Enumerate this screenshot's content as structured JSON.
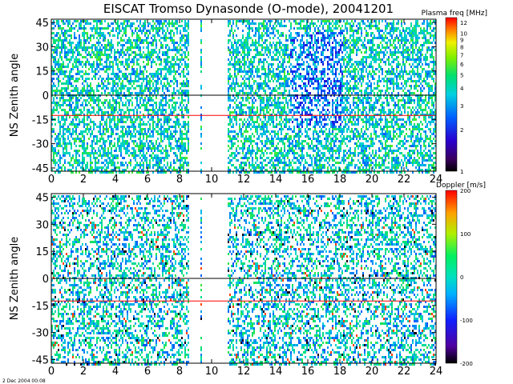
{
  "title": "EISCAT Tromso Dynasonde (O-mode),  20041201",
  "footer": "2 Dec 2004 00:08",
  "chart_data": [
    {
      "type": "heatmap",
      "ylabel": "NS Zenith angle",
      "colorbar_label": "Plasma freq [MHz]",
      "x_range": [
        0,
        24
      ],
      "y_range": [
        -47,
        47
      ],
      "x_ticks": [
        0,
        2,
        4,
        6,
        8,
        10,
        12,
        14,
        16,
        18,
        20,
        22,
        24
      ],
      "y_ticks": [
        45,
        30,
        15,
        0,
        -15,
        -30,
        -45
      ],
      "colorbar_scale": "log",
      "colorbar_range": [
        1,
        13
      ],
      "colorbar_ticks": [
        12,
        10,
        9,
        8,
        7,
        6,
        5,
        4,
        3,
        2,
        1
      ],
      "reference_lines": [
        {
          "y": 0,
          "color": "#000000"
        },
        {
          "y": -12.5,
          "color": "#ff0000"
        }
      ],
      "data_coverage_hours": [
        [
          0,
          8.5
        ],
        [
          9.3,
          9.4
        ],
        [
          11,
          24
        ]
      ],
      "dominant_values": "mostly 2–5 MHz (blue–green), lower values (~1.5–2) near 15–18 h"
    },
    {
      "type": "heatmap",
      "ylabel": "NS Zenith angle",
      "colorbar_label": "Doppler [m/s]",
      "x_range": [
        0,
        24
      ],
      "y_range": [
        -47,
        47
      ],
      "x_ticks": [
        0,
        2,
        4,
        6,
        8,
        10,
        12,
        14,
        16,
        18,
        20,
        22,
        24
      ],
      "y_ticks": [
        45,
        30,
        15,
        0,
        -15,
        -30,
        -45
      ],
      "colorbar_scale": "linear",
      "colorbar_range": [
        -200,
        200
      ],
      "colorbar_ticks": [
        200,
        100,
        0,
        -100,
        -200
      ],
      "reference_lines": [
        {
          "y": 0,
          "color": "#000000"
        },
        {
          "y": -12.5,
          "color": "#ff0000"
        }
      ],
      "data_coverage_hours": [
        [
          0,
          8.5
        ],
        [
          9.3,
          9.4
        ],
        [
          11,
          24
        ]
      ],
      "dominant_values": "mostly near 0 m/s (cyan–green) with scattered ±200 m/s extremes"
    }
  ],
  "colors": {
    "panel_frame": "#000000",
    "zero_line": "#000000",
    "ref_line": "#ff0000"
  }
}
